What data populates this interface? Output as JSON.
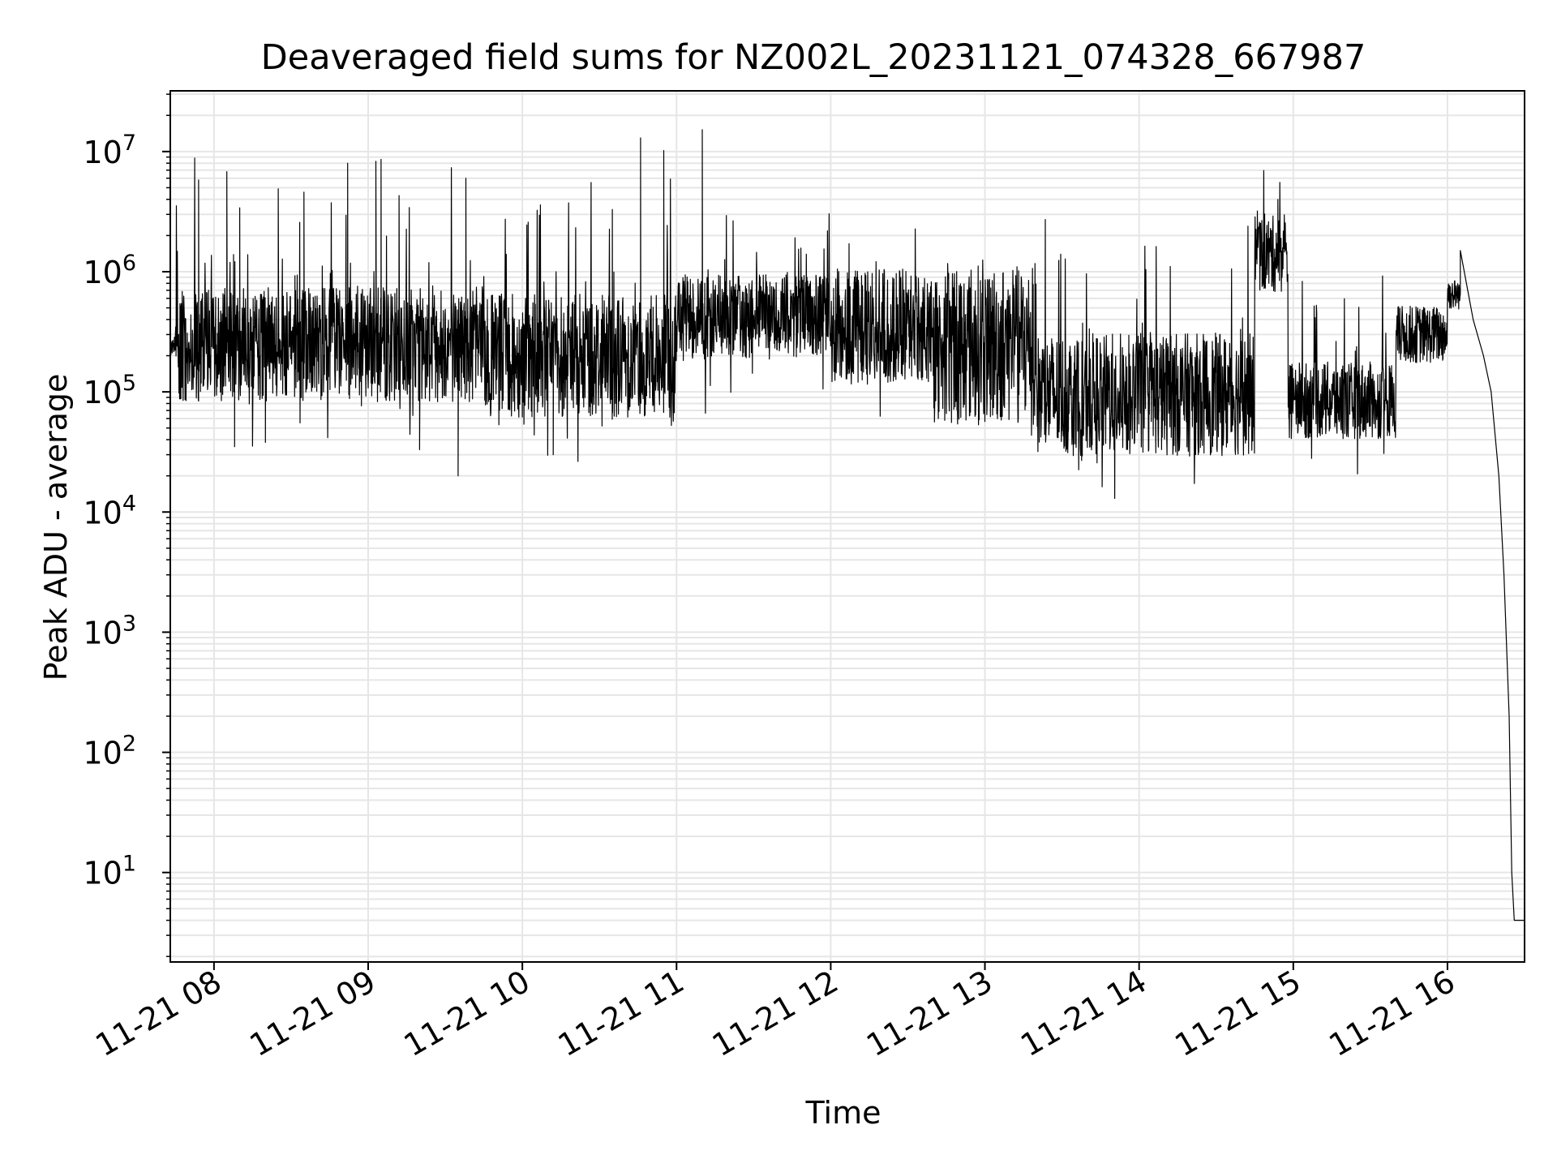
{
  "chart_data": {
    "type": "line",
    "title": "Deaveraged field sums for NZ002L_20231121_074328_667987",
    "xlabel": "Time",
    "ylabel": "Peak ADU - average",
    "x_range": [
      "2023-11-21 07:43",
      "2023-11-21 16:30"
    ],
    "ylim": [
      1.8,
      32000000
    ],
    "yscale": "log",
    "grid": true,
    "grid_color": "#e6e6e6",
    "line_color": "#000000",
    "x_ticks": [
      {
        "t": "2023-11-21 08:00",
        "label": "11-21 08"
      },
      {
        "t": "2023-11-21 09:00",
        "label": "11-21 09"
      },
      {
        "t": "2023-11-21 10:00",
        "label": "11-21 10"
      },
      {
        "t": "2023-11-21 11:00",
        "label": "11-21 11"
      },
      {
        "t": "2023-11-21 12:00",
        "label": "11-21 12"
      },
      {
        "t": "2023-11-21 13:00",
        "label": "11-21 13"
      },
      {
        "t": "2023-11-21 14:00",
        "label": "11-21 14"
      },
      {
        "t": "2023-11-21 15:00",
        "label": "11-21 15"
      },
      {
        "t": "2023-11-21 16:00",
        "label": "11-21 16"
      }
    ],
    "y_ticks": [
      {
        "value": 10,
        "base": "10",
        "exp": "1"
      },
      {
        "value": 100,
        "base": "10",
        "exp": "2"
      },
      {
        "value": 1000,
        "base": "10",
        "exp": "3"
      },
      {
        "value": 10000,
        "base": "10",
        "exp": "4"
      },
      {
        "value": 100000,
        "base": "10",
        "exp": "5"
      },
      {
        "value": 1000000,
        "base": "10",
        "exp": "6"
      },
      {
        "value": 10000000,
        "base": "10",
        "exp": "7"
      }
    ],
    "segments": [
      {
        "start": "2023-11-21 07:43",
        "end": "2023-11-21 07:45",
        "base": 240000,
        "spread": 0.05,
        "spike_prob": 0,
        "spike_max": 1,
        "dip_prob": 0
      },
      {
        "start": "2023-11-21 07:45",
        "end": "2023-11-21 09:45",
        "base": 250000,
        "spread": 0.3,
        "spike_prob": 0.06,
        "spike_max": 1.3,
        "dip_prob": 0.04
      },
      {
        "start": "2023-11-21 09:45",
        "end": "2023-11-21 11:00",
        "base": 200000,
        "spread": 0.32,
        "spike_prob": 0.06,
        "spike_max": 1.2,
        "dip_prob": 0.04
      },
      {
        "start": "2023-11-21 11:00",
        "end": "2023-11-21 12:00",
        "base": 420000,
        "spread": 0.22,
        "spike_prob": 0.04,
        "spike_max": 0.6,
        "dip_prob": 0.04
      },
      {
        "start": "2023-11-21 12:00",
        "end": "2023-11-21 12:40",
        "base": 350000,
        "spread": 0.3,
        "spike_prob": 0.03,
        "spike_max": 0.5,
        "dip_prob": 0.03
      },
      {
        "start": "2023-11-21 12:40",
        "end": "2023-11-21 13:20",
        "base": 250000,
        "spread": 0.42,
        "spike_prob": 0.03,
        "spike_max": 0.5,
        "dip_prob": 0.02
      },
      {
        "start": "2023-11-21 13:20",
        "end": "2023-11-21 14:45",
        "base": 95000,
        "spread": 0.32,
        "spike_prob": 0.05,
        "spike_max": 1.0,
        "dip_prob": 0.02
      },
      {
        "start": "2023-11-21 14:45",
        "end": "2023-11-21 14:58",
        "base": 1400000,
        "spread": 0.2,
        "spike_prob": 0.1,
        "spike_max": 0.5,
        "dip_prob": 0
      },
      {
        "start": "2023-11-21 14:58",
        "end": "2023-11-21 15:40",
        "base": 85000,
        "spread": 0.2,
        "spike_prob": 0.05,
        "spike_max": 1.0,
        "dip_prob": 0.02
      },
      {
        "start": "2023-11-21 15:40",
        "end": "2023-11-21 16:00",
        "base": 300000,
        "spread": 0.15,
        "spike_prob": 0.02,
        "spike_max": 0.4,
        "dip_prob": 0
      },
      {
        "start": "2023-11-21 16:00",
        "end": "2023-11-21 16:05",
        "base": 650000,
        "spread": 0.08,
        "spike_prob": 0.05,
        "spike_max": 0.3,
        "dip_prob": 0
      }
    ],
    "spikes": [
      {
        "t": "2023-11-21 07:54",
        "value": 5800000
      },
      {
        "t": "2023-11-21 08:05",
        "value": 6800000
      },
      {
        "t": "2023-11-21 08:10",
        "value": 3400000
      },
      {
        "t": "2023-11-21 08:25",
        "value": 4900000
      },
      {
        "t": "2023-11-21 08:35",
        "value": 4600000
      },
      {
        "t": "2023-11-21 08:52",
        "value": 8000000
      },
      {
        "t": "2023-11-21 09:03",
        "value": 8300000
      },
      {
        "t": "2023-11-21 09:05",
        "value": 8600000
      },
      {
        "t": "2023-11-21 09:12",
        "value": 4300000
      },
      {
        "t": "2023-11-21 09:38",
        "value": 6000000
      },
      {
        "t": "2023-11-21 10:07",
        "value": 3600000
      },
      {
        "t": "2023-11-21 10:35",
        "value": 3300000
      },
      {
        "t": "2023-11-21 10:46",
        "value": 13000000
      },
      {
        "t": "2023-11-21 10:55",
        "value": 10200000
      },
      {
        "t": "2023-11-21 11:10",
        "value": 15200000
      },
      {
        "t": "2023-11-21 14:46",
        "value": 3200000
      },
      {
        "t": "2023-11-21 14:54",
        "value": 4000000
      },
      {
        "t": "2023-11-21 16:05",
        "value": 1500000
      }
    ],
    "dips": [
      {
        "t": "2023-11-21 09:35",
        "value": 20000
      },
      {
        "t": "2023-11-21 09:20",
        "value": 33000
      },
      {
        "t": "2023-11-21 10:12",
        "value": 30000
      },
      {
        "t": "2023-11-21 08:08",
        "value": 35000
      },
      {
        "t": "2023-11-21 08:20",
        "value": 38000
      }
    ],
    "decay": [
      {
        "t": "2023-11-21 16:05",
        "value": 650000
      },
      {
        "t": "2023-11-21 16:10",
        "value": 400000
      },
      {
        "t": "2023-11-21 16:14",
        "value": 200000
      },
      {
        "t": "2023-11-21 16:17",
        "value": 100000
      },
      {
        "t": "2023-11-21 16:20",
        "value": 20000
      },
      {
        "t": "2023-11-21 16:22",
        "value": 3000
      },
      {
        "t": "2023-11-21 16:24",
        "value": 200
      },
      {
        "t": "2023-11-21 16:25",
        "value": 10
      },
      {
        "t": "2023-11-21 16:26",
        "value": 4
      },
      {
        "t": "2023-11-21 16:30",
        "value": 4
      }
    ]
  }
}
